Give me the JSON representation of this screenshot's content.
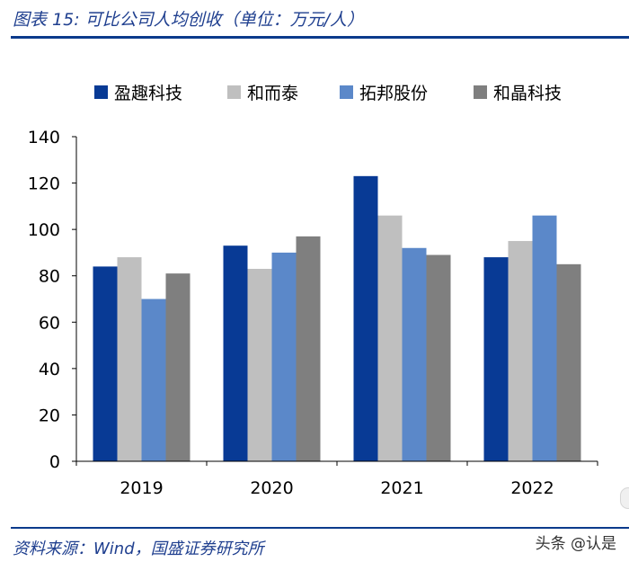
{
  "header": {
    "title": "图表 15:  可比公司人均创收（单位：万元/人）"
  },
  "footer": {
    "source": "资料来源：Wind，国盛证券研究所",
    "watermark": "头条 @认是"
  },
  "colors": {
    "rule": "#0b3a8c",
    "title_text": "#1f3f8f"
  },
  "chart_data": {
    "type": "bar",
    "categories": [
      "2019",
      "2020",
      "2021",
      "2022"
    ],
    "series": [
      {
        "name": "盈趣科技",
        "color": "#083a95",
        "values": [
          84,
          93,
          123,
          88
        ]
      },
      {
        "name": "和而泰",
        "color": "#bfbfbf",
        "values": [
          88,
          83,
          106,
          95
        ]
      },
      {
        "name": "拓邦股份",
        "color": "#5b88c9",
        "values": [
          70,
          90,
          92,
          106
        ]
      },
      {
        "name": "和晶科技",
        "color": "#7f7f7f",
        "values": [
          81,
          97,
          89,
          85
        ]
      }
    ],
    "yticks": [
      "0",
      "20",
      "40",
      "60",
      "80",
      "100",
      "120",
      "140"
    ],
    "ylim": [
      0,
      140
    ],
    "grid": false,
    "legend_position": "top"
  }
}
